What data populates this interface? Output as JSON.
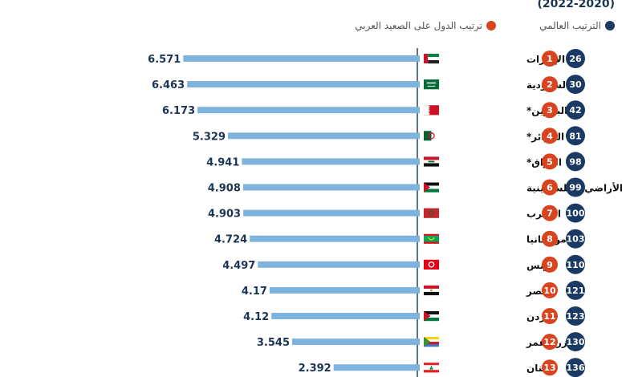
{
  "header": {
    "years": "(2022-2020)"
  },
  "legend": {
    "world": {
      "label": "الترتيب العالمي",
      "color": "#1b3a63"
    },
    "arab": {
      "label": "ترتيب الدول على الصعيد العربي",
      "color": "#d9441e"
    }
  },
  "colors": {
    "bar": "#7db3dc",
    "value": "#1b3557",
    "axis": "#1b3557"
  },
  "chart_data": {
    "type": "bar",
    "orientation": "horizontal",
    "xlim": [
      0,
      6.6
    ],
    "rows": [
      {
        "country": "الإمارات",
        "value_label": "6.571",
        "value": 6.571,
        "arab_rank": "1",
        "world_rank": "26",
        "flag": "uae"
      },
      {
        "country": "السعودية",
        "value_label": "6.463",
        "value": 6.463,
        "arab_rank": "2",
        "world_rank": "30",
        "flag": "saudi"
      },
      {
        "country": "البحرين*",
        "value_label": "6.173",
        "value": 6.173,
        "arab_rank": "3",
        "world_rank": "42",
        "flag": "bahrain"
      },
      {
        "country": "الجزائر*",
        "value_label": "5.329",
        "value": 5.329,
        "arab_rank": "4",
        "world_rank": "81",
        "flag": "algeria"
      },
      {
        "country": "العراق*",
        "value_label": "4.941",
        "value": 4.941,
        "arab_rank": "5",
        "world_rank": "98",
        "flag": "iraq"
      },
      {
        "country": "الأراضي الفلسطينية",
        "value_label": "4.908",
        "value": 4.908,
        "arab_rank": "6",
        "world_rank": "99",
        "flag": "palestine"
      },
      {
        "country": "المغرب",
        "value_label": "4.903",
        "value": 4.903,
        "arab_rank": "7",
        "world_rank": "100",
        "flag": "morocco"
      },
      {
        "country": "موريتانيا",
        "value_label": "4.724",
        "value": 4.724,
        "arab_rank": "8",
        "world_rank": "103",
        "flag": "mauritania"
      },
      {
        "country": "تونس",
        "value_label": "4.497",
        "value": 4.497,
        "arab_rank": "9",
        "world_rank": "110",
        "flag": "tunisia"
      },
      {
        "country": "مصر",
        "value_label": "4.17",
        "value": 4.17,
        "arab_rank": "10",
        "world_rank": "121",
        "flag": "egypt"
      },
      {
        "country": "الأردن",
        "value_label": "4.12",
        "value": 4.12,
        "arab_rank": "11",
        "world_rank": "123",
        "flag": "jordan"
      },
      {
        "country": "جزر القمر",
        "value_label": "3.545",
        "value": 3.545,
        "arab_rank": "12",
        "world_rank": "130",
        "flag": "comoros"
      },
      {
        "country": "لبنان",
        "value_label": "2.392",
        "value": 2.392,
        "arab_rank": "13",
        "world_rank": "136",
        "flag": "lebanon"
      }
    ]
  }
}
